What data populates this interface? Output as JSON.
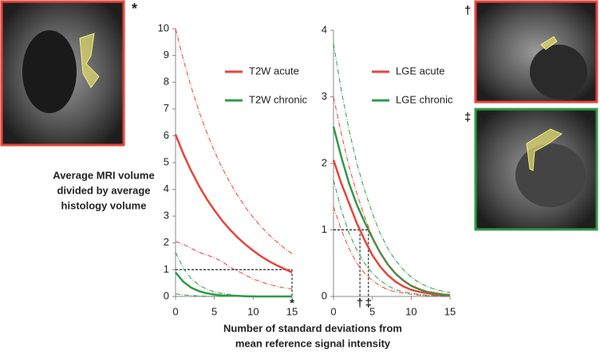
{
  "chart_data": [
    {
      "type": "line",
      "x": [
        0,
        1,
        2,
        3,
        4,
        5,
        6,
        7,
        8,
        9,
        10,
        11,
        12,
        13,
        14,
        15
      ],
      "xlim": [
        0,
        15
      ],
      "xticks": [
        0,
        5,
        10,
        15
      ],
      "ylim": [
        0,
        10
      ],
      "yticks": [
        0,
        1,
        2,
        3,
        4,
        5,
        6,
        7,
        8,
        9,
        10
      ],
      "series": [
        {
          "name": "T2W acute",
          "color": "#e8433a",
          "values": [
            6.05,
            5.33,
            4.7,
            4.14,
            3.65,
            3.22,
            2.83,
            2.5,
            2.2,
            1.94,
            1.71,
            1.5,
            1.32,
            1.17,
            1.03,
            0.9
          ]
        },
        {
          "name": "T2W chronic",
          "color": "#2e9a48",
          "values": [
            0.9,
            0.55,
            0.33,
            0.2,
            0.12,
            0.07,
            0.04,
            0.03,
            0.02,
            0.01,
            0,
            0,
            0,
            0,
            0,
            0
          ]
        },
        {
          "color": "#e8433a",
          "style": "dashdot",
          "values": [
            10,
            8.85,
            7.83,
            6.93,
            6.14,
            5.43,
            4.81,
            4.26,
            3.77,
            3.33,
            2.95,
            2.61,
            2.31,
            2.05,
            1.81,
            1.6
          ]
        },
        {
          "color": "#e8433a",
          "style": "dashdot",
          "values": [
            2.05,
            1.95,
            1.8,
            1.65,
            1.55,
            1.45,
            1.3,
            1.1,
            0.95,
            0.8,
            0.65,
            0.55,
            0.45,
            0.38,
            0.32,
            0.28
          ]
        },
        {
          "color": "#2e9a48",
          "style": "dashdot",
          "values": [
            1.65,
            1.05,
            0.67,
            0.43,
            0.27,
            0.17,
            0.11,
            0.07,
            0.04,
            0.03,
            0.02,
            0.01,
            0,
            0,
            0,
            0
          ]
        },
        {
          "color": "#2e9a48",
          "style": "dashdot",
          "values": [
            0.1,
            0.06,
            0.04,
            0.02,
            0.01,
            0,
            0,
            0,
            0,
            0,
            0,
            0,
            0,
            0,
            0,
            0
          ]
        }
      ],
      "reference_y": 1,
      "markers": [
        {
          "x": 15,
          "label": "*"
        }
      ]
    },
    {
      "type": "line",
      "x": [
        0,
        1,
        2,
        3,
        4,
        5,
        6,
        7,
        8,
        9,
        10,
        11,
        12,
        13,
        14,
        15
      ],
      "xlim": [
        0,
        15
      ],
      "xticks": [
        0,
        5,
        10,
        15
      ],
      "ylim": [
        0,
        4
      ],
      "yticks": [
        0,
        1,
        2,
        3,
        4
      ],
      "series": [
        {
          "name": "LGE acute",
          "color": "#e8433a",
          "values": [
            2.05,
            1.7,
            1.4,
            1.1,
            0.85,
            0.62,
            0.45,
            0.32,
            0.22,
            0.15,
            0.1,
            0.07,
            0.05,
            0.03,
            0.02,
            0.01
          ]
        },
        {
          "name": "LGE chronic",
          "color": "#2e9a48",
          "values": [
            2.55,
            2.1,
            1.7,
            1.38,
            1.12,
            0.88,
            0.66,
            0.48,
            0.34,
            0.24,
            0.16,
            0.11,
            0.07,
            0.05,
            0.03,
            0.02
          ]
        },
        {
          "color": "#e8433a",
          "style": "dashdot",
          "values": [
            3.0,
            2.45,
            1.95,
            1.55,
            1.2,
            0.9,
            0.66,
            0.48,
            0.34,
            0.24,
            0.17,
            0.12,
            0.08,
            0.06,
            0.04,
            0.03
          ]
        },
        {
          "color": "#e8433a",
          "style": "dashdot",
          "values": [
            1.35,
            1.0,
            0.72,
            0.5,
            0.35,
            0.24,
            0.16,
            0.1,
            0.07,
            0.05,
            0.03,
            0.02,
            0.01,
            0.01,
            0,
            0
          ]
        },
        {
          "color": "#2e9a48",
          "style": "dashdot",
          "values": [
            3.8,
            3.1,
            2.5,
            2.0,
            1.6,
            1.25,
            0.95,
            0.72,
            0.54,
            0.4,
            0.29,
            0.21,
            0.15,
            0.11,
            0.08,
            0.06
          ]
        },
        {
          "color": "#2e9a48",
          "style": "dashdot",
          "values": [
            1.75,
            1.3,
            0.95,
            0.7,
            0.5,
            0.35,
            0.24,
            0.16,
            0.1,
            0.07,
            0.05,
            0.03,
            0.02,
            0.01,
            0.01,
            0
          ]
        }
      ],
      "reference_y": 1,
      "markers": [
        {
          "x": 3.4,
          "label": "†"
        },
        {
          "x": 4.5,
          "label": "‡"
        }
      ]
    }
  ],
  "ylabel": [
    "Average MRI volume",
    "divided by average",
    "histology volume"
  ],
  "xlabel": [
    "Number of standard deviations from",
    "mean reference signal intensity"
  ],
  "images": [
    {
      "marker": "*",
      "border": "#e8433a"
    },
    {
      "marker": "†",
      "border": "#e8433a"
    },
    {
      "marker": "‡",
      "border": "#2e9a48"
    }
  ]
}
